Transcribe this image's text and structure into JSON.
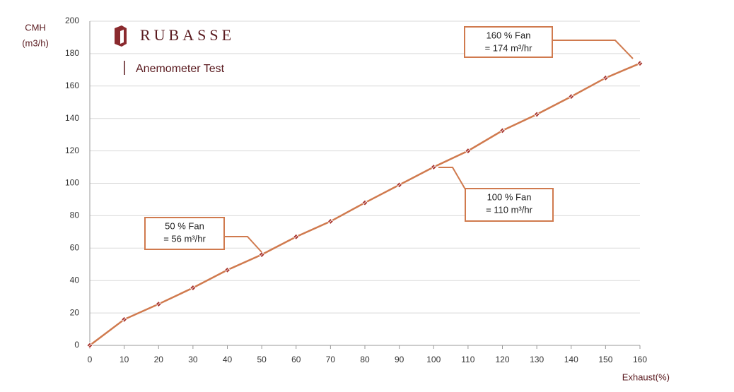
{
  "chart_data": {
    "type": "line",
    "brand": "RUBASSE",
    "title": "Anemometer Test",
    "ylabel": [
      "CMH",
      "(m3/h)"
    ],
    "xlabel": "Exhaust(%)",
    "x": [
      0,
      10,
      20,
      30,
      40,
      50,
      60,
      70,
      80,
      90,
      100,
      110,
      120,
      130,
      140,
      150,
      160
    ],
    "values": [
      0,
      16,
      25.5,
      35.5,
      46.5,
      56,
      67,
      76.5,
      88,
      99,
      110,
      120,
      132.5,
      142.5,
      153.5,
      165,
      174
    ],
    "color": "#d07a4e",
    "marker_color": "#a8342c",
    "xlim": [
      0,
      160
    ],
    "xticks": [
      0,
      10,
      20,
      30,
      40,
      50,
      60,
      70,
      80,
      90,
      100,
      110,
      120,
      130,
      140,
      150,
      160
    ],
    "ylim": [
      0,
      200
    ],
    "yticks": [
      0,
      20,
      40,
      60,
      80,
      100,
      120,
      140,
      160,
      180,
      200
    ],
    "grid": true,
    "annotations": [
      [
        "50 %  Fan",
        "= 56 m³/hr"
      ],
      [
        "100 %  Fan",
        "= 110 m³/hr"
      ],
      [
        "160 %  Fan",
        "= 174 m³/hr"
      ]
    ]
  }
}
